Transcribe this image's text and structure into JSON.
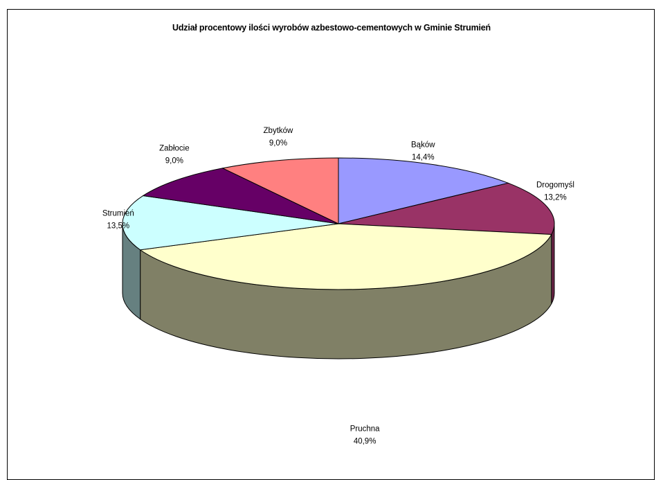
{
  "chart_data": {
    "type": "pie",
    "title": "Udział procentowy ilości wyrobów azbestowo-cementowych w Gminie Strumień",
    "categories": [
      "Bąków",
      "Drogomyśl",
      "Pruchna",
      "Strumień",
      "Zabłocie",
      "Zbytków"
    ],
    "values": [
      14.4,
      13.2,
      40.9,
      13.5,
      9.0,
      9.0
    ],
    "value_labels": [
      "14,4%",
      "13,2%",
      "40,9%",
      "13,5%",
      "9,0%",
      "9,0%"
    ],
    "colors": [
      "#9999ff",
      "#993366",
      "#ffffcc",
      "#ccffff",
      "#660066",
      "#ff8080"
    ],
    "side_colors": [
      "#6b6bb3",
      "#6b2447",
      "#808066",
      "#668080",
      "#470047",
      "#b35a5a"
    ],
    "style": "3d",
    "legend": "none"
  }
}
